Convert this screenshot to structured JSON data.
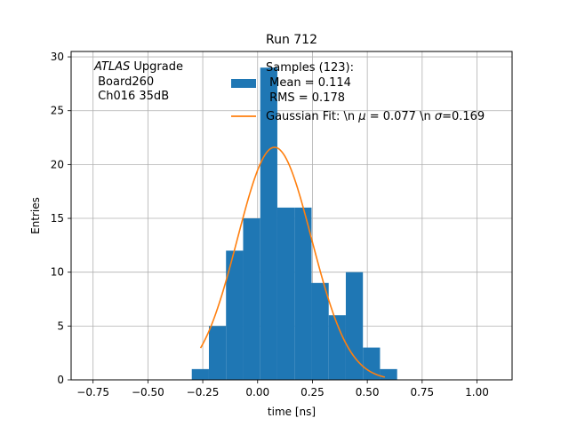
{
  "chart_data": {
    "type": "bar",
    "title": "Run 712",
    "xlabel": "time [ns]",
    "ylabel": "Entries",
    "xlim": [
      -0.85,
      1.16
    ],
    "ylim": [
      0,
      30.5
    ],
    "xticks": [
      -0.75,
      -0.5,
      -0.25,
      0.0,
      0.25,
      0.5,
      0.75,
      1.0
    ],
    "xtick_labels": [
      "−0.75",
      "−0.50",
      "−0.25",
      "0.00",
      "0.25",
      "0.50",
      "0.75",
      "1.00"
    ],
    "yticks": [
      0,
      5,
      10,
      15,
      20,
      25,
      30
    ],
    "ytick_labels": [
      "0",
      "5",
      "10",
      "15",
      "20",
      "25",
      "30"
    ],
    "grid": true,
    "annotation": {
      "italic": "ATLAS",
      "rest": " Upgrade",
      "line2": " Board260",
      "line3": " Ch016 35dB"
    },
    "legend": {
      "placement": "top-right",
      "hist_lines": [
        "Samples (123):",
        " Mean = 0.114",
        " RMS = 0.178"
      ],
      "fit_label_a": "Gaussian Fit: \\n ",
      "fit_mu": "μ",
      "fit_label_b": " = 0.077 \\n ",
      "fit_sigma": "σ",
      "fit_label_c": "=0.169"
    },
    "colors": {
      "histogram": "#1f77b4",
      "fit": "#ff7f0e",
      "grid": "#b0b0b0"
    },
    "histogram": {
      "bin_edges": [
        -0.3,
        -0.222,
        -0.144,
        -0.066,
        0.012,
        0.09,
        0.168,
        0.246,
        0.324,
        0.402,
        0.48,
        0.558,
        0.636
      ],
      "counts": [
        1,
        5,
        12,
        15,
        29,
        16,
        16,
        9,
        6,
        10,
        3,
        1
      ]
    },
    "fit": {
      "mu": 0.077,
      "sigma": 0.169,
      "amplitude": 21.6,
      "x_range": [
        -0.26,
        0.58
      ]
    }
  }
}
